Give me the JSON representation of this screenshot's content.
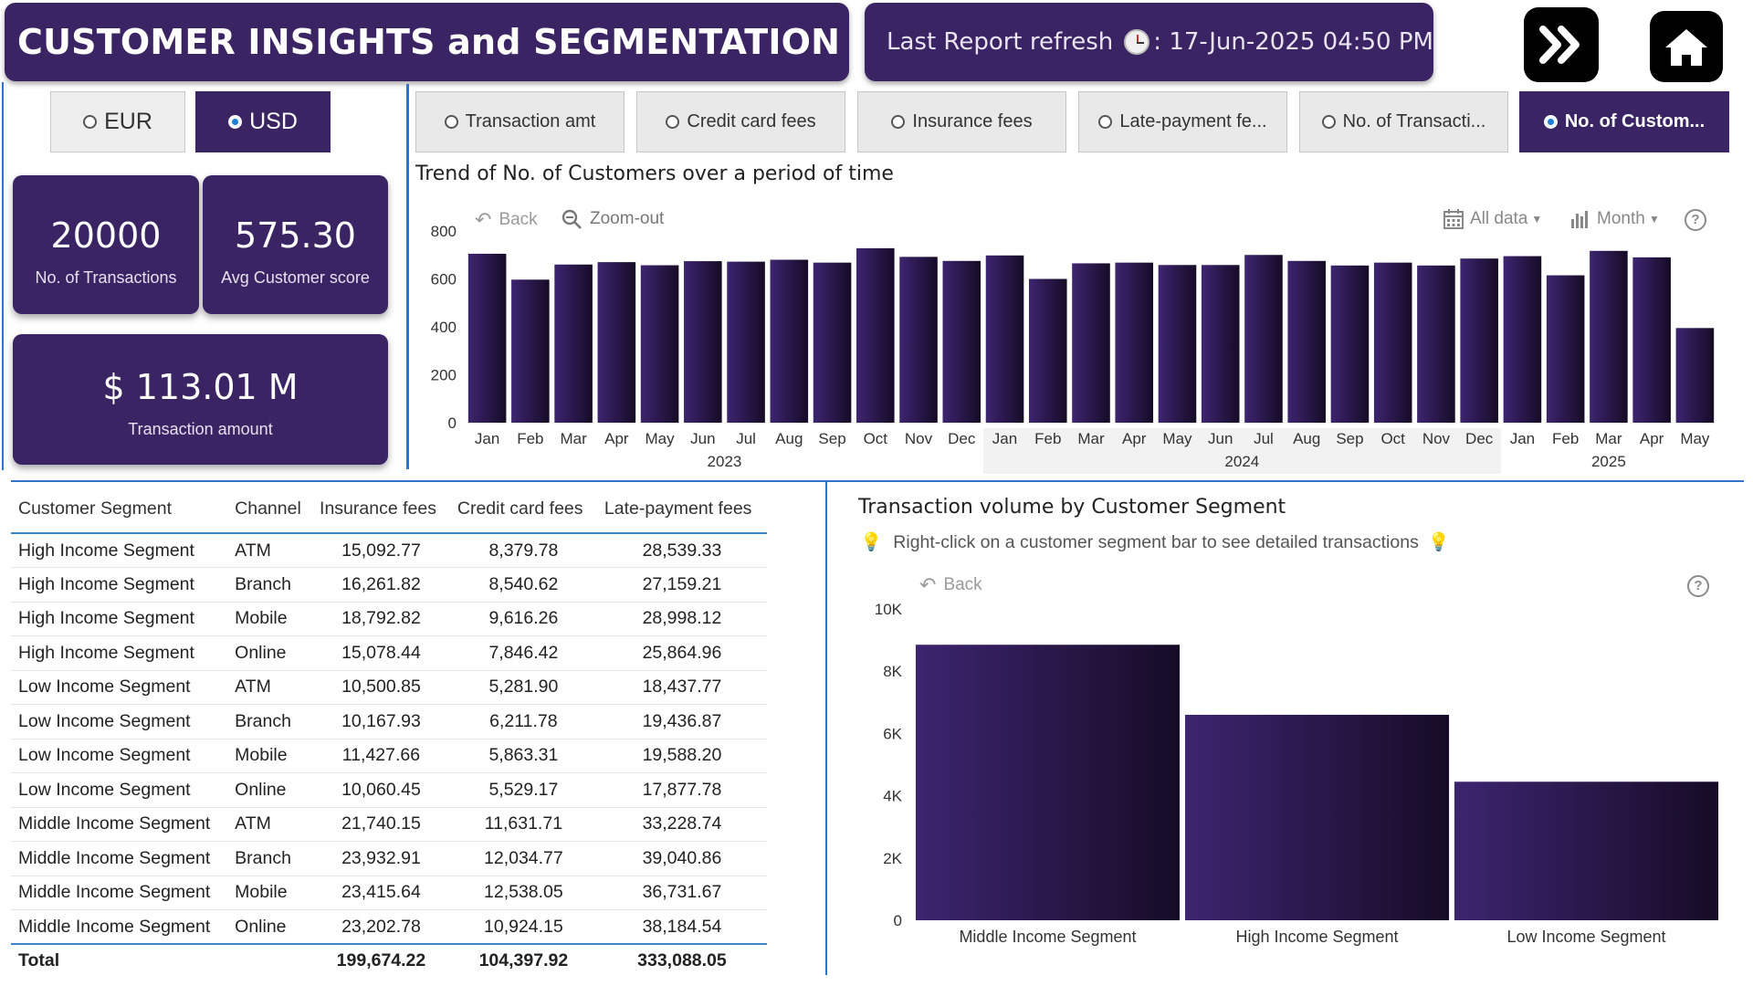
{
  "header": {
    "title": "CUSTOMER INSIGHTS and SEGMENTATION",
    "refresh_label": "Last Report refresh",
    "refresh_value": ": 17-Jun-2025 04:50 PM"
  },
  "nav": {
    "next_icon": "double-chevron-right-icon",
    "home_icon": "home-icon"
  },
  "currency": {
    "options": [
      "EUR",
      "USD"
    ],
    "selected": "USD"
  },
  "kpis": {
    "transactions_value": "20000",
    "transactions_label": "No. of Transactions",
    "score_value": "575.30",
    "score_label": "Avg Customer score",
    "amount_value": "$ 113.01 M",
    "amount_label": "Transaction amount"
  },
  "metrics": {
    "options": [
      "Transaction amt",
      "Credit card fees",
      "Insurance fees",
      "Late-payment fe...",
      "No. of Transacti...",
      "No. of Custom..."
    ],
    "selected": "No. of Custom..."
  },
  "trend": {
    "title": "Trend of No. of Customers over a period of time",
    "back_label": "Back",
    "zoom_label": "Zoom-out",
    "all_data_label": "All data",
    "period_label": "Month",
    "help": "?"
  },
  "table": {
    "headers": [
      "Customer Segment",
      "Channel",
      "Insurance fees",
      "Credit card fees",
      "Late-payment fees"
    ],
    "rows": [
      [
        "High Income Segment",
        "ATM",
        "15,092.77",
        "8,379.78",
        "28,539.33"
      ],
      [
        "High Income Segment",
        "Branch",
        "16,261.82",
        "8,540.62",
        "27,159.21"
      ],
      [
        "High Income Segment",
        "Mobile",
        "18,792.82",
        "9,616.26",
        "28,998.12"
      ],
      [
        "High Income Segment",
        "Online",
        "15,078.44",
        "7,846.42",
        "25,864.96"
      ],
      [
        "Low Income Segment",
        "ATM",
        "10,500.85",
        "5,281.90",
        "18,437.77"
      ],
      [
        "Low Income Segment",
        "Branch",
        "10,167.93",
        "6,211.78",
        "19,436.87"
      ],
      [
        "Low Income Segment",
        "Mobile",
        "11,427.66",
        "5,863.31",
        "19,588.20"
      ],
      [
        "Low Income Segment",
        "Online",
        "10,060.45",
        "5,529.17",
        "17,877.78"
      ],
      [
        "Middle Income Segment",
        "ATM",
        "21,740.15",
        "11,631.71",
        "33,228.74"
      ],
      [
        "Middle Income Segment",
        "Branch",
        "23,932.91",
        "12,034.77",
        "39,040.86"
      ],
      [
        "Middle Income Segment",
        "Mobile",
        "23,415.64",
        "12,538.05",
        "36,731.67"
      ],
      [
        "Middle Income Segment",
        "Online",
        "23,202.78",
        "10,924.15",
        "38,184.54"
      ]
    ],
    "total": [
      "Total",
      "",
      "199,674.22",
      "104,397.92",
      "333,088.05"
    ]
  },
  "segment_chart": {
    "title": "Transaction volume by Customer Segment",
    "hint": "Right-click on a customer segment bar to see detailed transactions",
    "back_label": "Back",
    "help": "?"
  },
  "colors": {
    "accent": "#3b2463",
    "divider": "#2f74c9",
    "bar_light": "#3d2570",
    "bar_dark": "#160b26"
  },
  "chart_data": [
    {
      "type": "bar",
      "title": "Trend of No. of Customers over a period of time",
      "categories": [
        "Jan",
        "Feb",
        "Mar",
        "Apr",
        "May",
        "Jun",
        "Jul",
        "Aug",
        "Sep",
        "Oct",
        "Nov",
        "Dec",
        "Jan",
        "Feb",
        "Mar",
        "Apr",
        "May",
        "Jun",
        "Jul",
        "Aug",
        "Sep",
        "Oct",
        "Nov",
        "Dec",
        "Jan",
        "Feb",
        "Mar",
        "Apr",
        "May"
      ],
      "years": [
        {
          "label": "2023",
          "start": 0,
          "end": 11
        },
        {
          "label": "2024",
          "start": 12,
          "end": 23
        },
        {
          "label": "2025",
          "start": 24,
          "end": 28
        }
      ],
      "values": [
        705,
        597,
        660,
        670,
        657,
        674,
        672,
        680,
        668,
        728,
        692,
        675,
        698,
        600,
        665,
        668,
        658,
        658,
        700,
        675,
        656,
        668,
        656,
        685,
        695,
        615,
        717,
        690,
        395
      ],
      "ylim": [
        0,
        800
      ],
      "yticks": [
        0,
        200,
        400,
        600,
        800
      ],
      "xlabel": "",
      "ylabel": ""
    },
    {
      "type": "bar",
      "title": "Transaction volume by Customer Segment",
      "categories": [
        "Middle Income Segment",
        "High Income Segment",
        "Low Income Segment"
      ],
      "values": [
        8850,
        6600,
        4450
      ],
      "ylim": [
        0,
        10000
      ],
      "yticks": [
        0,
        2000,
        4000,
        6000,
        8000,
        10000
      ],
      "ytick_labels": [
        "0",
        "2K",
        "4K",
        "6K",
        "8K",
        "10K"
      ],
      "xlabel": "",
      "ylabel": ""
    }
  ]
}
